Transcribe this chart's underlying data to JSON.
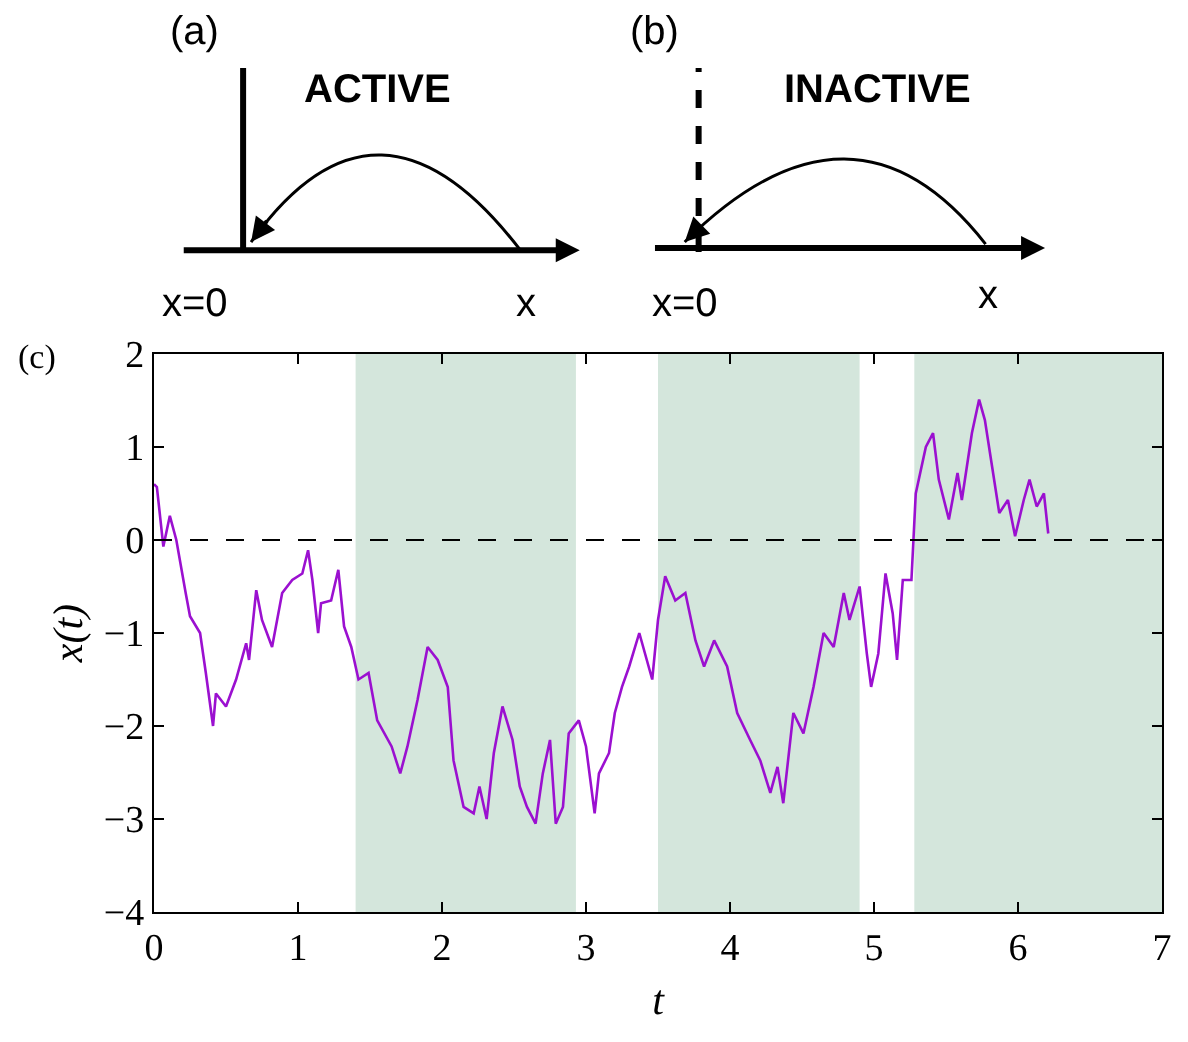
{
  "chart_data": {
    "type": "line",
    "xlabel": "t",
    "ylabel": "x(t)",
    "x": [
      0.0,
      0.02,
      0.065,
      0.11,
      0.155,
      0.22,
      0.25,
      0.32,
      0.36,
      0.41,
      0.43,
      0.5,
      0.57,
      0.64,
      0.66,
      0.71,
      0.75,
      0.82,
      0.89,
      0.96,
      1.03,
      1.07,
      1.1,
      1.14,
      1.16,
      1.23,
      1.28,
      1.32,
      1.37,
      1.42,
      1.49,
      1.55,
      1.65,
      1.71,
      1.76,
      1.83,
      1.9,
      1.97,
      2.04,
      2.08,
      2.15,
      2.22,
      2.26,
      2.31,
      2.36,
      2.42,
      2.49,
      2.54,
      2.59,
      2.65,
      2.7,
      2.75,
      2.79,
      2.84,
      2.88,
      2.95,
      3.0,
      3.06,
      3.09,
      3.16,
      3.2,
      3.25,
      3.3,
      3.37,
      3.46,
      3.5,
      3.55,
      3.62,
      3.69,
      3.76,
      3.82,
      3.89,
      3.98,
      4.05,
      4.14,
      4.21,
      4.28,
      4.33,
      4.37,
      4.44,
      4.51,
      4.58,
      4.65,
      4.72,
      4.79,
      4.83,
      4.9,
      4.95,
      4.98,
      5.03,
      5.08,
      5.13,
      5.16,
      5.2,
      5.26,
      5.29,
      5.36,
      5.41,
      5.45,
      5.52,
      5.58,
      5.61,
      5.68,
      5.73,
      5.77,
      5.82,
      5.87,
      5.93,
      5.98,
      6.04,
      6.08,
      6.13,
      6.18,
      6.21
    ],
    "series": [
      {
        "color": "#9b10d0",
        "values": [
          0.6,
          0.57,
          -0.07,
          0.26,
          0.0,
          -0.57,
          -0.82,
          -1.0,
          -1.43,
          -2.0,
          -1.65,
          -1.79,
          -1.5,
          -1.11,
          -1.29,
          -0.54,
          -0.86,
          -1.15,
          -0.57,
          -0.43,
          -0.36,
          -0.11,
          -0.43,
          -1.0,
          -0.68,
          -0.65,
          -0.32,
          -0.93,
          -1.15,
          -1.5,
          -1.43,
          -1.94,
          -2.22,
          -2.51,
          -2.22,
          -1.72,
          -1.15,
          -1.29,
          -1.58,
          -2.37,
          -2.87,
          -2.94,
          -2.65,
          -3.0,
          -2.29,
          -1.79,
          -2.15,
          -2.65,
          -2.87,
          -3.05,
          -2.51,
          -2.15,
          -3.05,
          -2.87,
          -2.08,
          -1.94,
          -2.22,
          -2.94,
          -2.51,
          -2.29,
          -1.86,
          -1.58,
          -1.36,
          -1.0,
          -1.5,
          -0.86,
          -0.39,
          -0.65,
          -0.57,
          -1.08,
          -1.36,
          -1.08,
          -1.36,
          -1.86,
          -2.15,
          -2.37,
          -2.72,
          -2.44,
          -2.83,
          -1.86,
          -2.08,
          -1.58,
          -1.0,
          -1.15,
          -0.57,
          -0.86,
          -0.5,
          -1.22,
          -1.58,
          -1.22,
          -0.36,
          -0.79,
          -1.29,
          -0.43,
          -0.43,
          0.5,
          1.0,
          1.15,
          0.65,
          0.22,
          0.72,
          0.43,
          1.15,
          1.51,
          1.29,
          0.79,
          0.29,
          0.43,
          0.04,
          0.43,
          0.65,
          0.36,
          0.5,
          0.07
        ]
      }
    ],
    "xlim": [
      0,
      7
    ],
    "xticks": [
      0,
      1,
      2,
      3,
      4,
      5,
      6,
      7
    ],
    "ylim": [
      -4,
      2
    ],
    "yticks": [
      {
        "value": -4,
        "label": "−4"
      },
      {
        "value": -3,
        "label": "−3"
      },
      {
        "value": -2,
        "label": "−2"
      },
      {
        "value": -1,
        "label": "−1"
      },
      0,
      1,
      2
    ],
    "ref_lines": [
      {
        "axis": "y",
        "value": 0,
        "color": "#000000",
        "line_style": "dashed"
      }
    ],
    "bands": [
      {
        "axis": "x",
        "from": 1.4,
        "to": 2.93,
        "color": "#d4e6dc"
      },
      {
        "axis": "x",
        "from": 3.5,
        "to": 4.9,
        "color": "#d4e6dc"
      },
      {
        "axis": "x",
        "from": 5.28,
        "to": 7,
        "color": "#d4e6dc"
      }
    ],
    "annotations": [
      "(a)",
      "ACTIVE",
      "x=0",
      "x",
      "(b)",
      "INACTIVE",
      "x=0",
      "x",
      "(c)"
    ],
    "grid": false,
    "line_style": "solid",
    "marker": "none"
  }
}
